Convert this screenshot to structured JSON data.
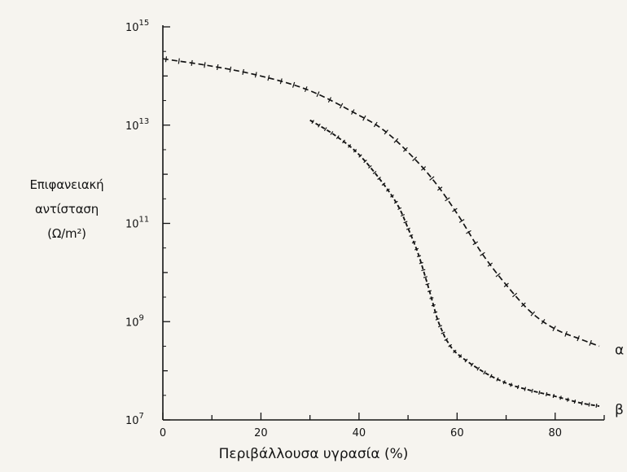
{
  "chart_data": {
    "type": "line",
    "xlabel": "Περιβάλλουσα υγρασία (%)",
    "ylabel_lines": [
      "Επιφανειακή",
      "αντίσταση",
      "(Ω/m²)"
    ],
    "x_ticks": [
      "0",
      "20",
      "40",
      "60",
      "80"
    ],
    "y_ticks": [
      {
        "base": "10",
        "exp": "7"
      },
      {
        "base": "10",
        "exp": "9"
      },
      {
        "base": "10",
        "exp": "11"
      },
      {
        "base": "10",
        "exp": "13"
      },
      {
        "base": "10",
        "exp": "15"
      }
    ],
    "xlim": [
      0,
      90
    ],
    "ylim_log10": [
      7,
      15
    ],
    "y_scale": "log",
    "grid": false,
    "series": [
      {
        "name": "α",
        "x": [
          0,
          10,
          20,
          30,
          40,
          45,
          50,
          55,
          60,
          65,
          70,
          75,
          80,
          85,
          89
        ],
        "log10_y": [
          14.35,
          14.2,
          14.0,
          13.7,
          13.2,
          12.9,
          12.45,
          11.9,
          11.2,
          10.4,
          9.75,
          9.2,
          8.85,
          8.65,
          8.5
        ]
      },
      {
        "name": "β",
        "x": [
          30,
          35,
          40,
          45,
          48,
          50,
          52,
          54,
          55,
          56,
          57,
          58,
          60,
          65,
          70,
          75,
          80,
          85,
          89
        ],
        "log10_y": [
          13.1,
          12.8,
          12.4,
          11.8,
          11.35,
          10.9,
          10.4,
          9.75,
          9.4,
          9.05,
          8.8,
          8.6,
          8.35,
          8.0,
          7.75,
          7.6,
          7.48,
          7.35,
          7.28
        ]
      }
    ]
  }
}
